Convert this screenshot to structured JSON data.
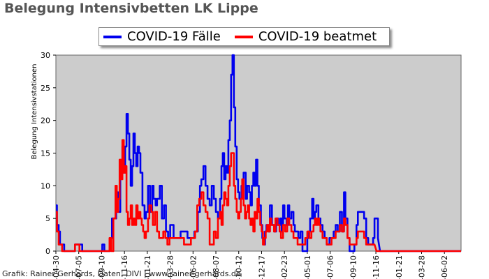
{
  "chart_data": {
    "type": "line",
    "title": "Belegung Intensivbetten LK Lippe",
    "ylabel": "Belegung Intensivstationen",
    "ylim": [
      0,
      30
    ],
    "yticks": [
      0,
      5,
      10,
      15,
      20,
      25,
      30
    ],
    "grid": false,
    "legend_position": "top-center",
    "background_color": "#cccccc",
    "x_tick_labels": [
      "-04-30",
      "-07-05",
      "-09-10",
      "-11-16",
      "-01-21",
      "-03-28",
      "-06-02",
      "-08-07",
      "-10-12",
      "-12-17",
      "-02-23",
      "-05-01",
      "-07-06",
      "-09-10",
      "-11-16",
      "-01-21",
      "-03-28",
      "-06-02"
    ],
    "x_tick_index": [
      0,
      66,
      132,
      198,
      264,
      330,
      396,
      462,
      528,
      594,
      660,
      726,
      792,
      858,
      924,
      990,
      1056,
      1122
    ],
    "x_total": 1170,
    "series": [
      {
        "name": "COVID-19 Fälle",
        "color": "#0000ee",
        "points": [
          [
            0,
            7
          ],
          [
            3,
            4
          ],
          [
            8,
            3
          ],
          [
            12,
            1
          ],
          [
            18,
            1
          ],
          [
            24,
            0
          ],
          [
            55,
            1
          ],
          [
            70,
            1
          ],
          [
            76,
            0
          ],
          [
            130,
            0
          ],
          [
            134,
            1
          ],
          [
            140,
            0
          ],
          [
            152,
            0
          ],
          [
            156,
            2
          ],
          [
            162,
            5
          ],
          [
            168,
            5
          ],
          [
            174,
            9
          ],
          [
            180,
            6
          ],
          [
            186,
            13
          ],
          [
            192,
            16
          ],
          [
            196,
            12
          ],
          [
            200,
            16
          ],
          [
            204,
            21
          ],
          [
            208,
            18
          ],
          [
            212,
            14
          ],
          [
            216,
            10
          ],
          [
            220,
            13
          ],
          [
            224,
            18
          ],
          [
            228,
            15
          ],
          [
            232,
            13
          ],
          [
            236,
            16
          ],
          [
            240,
            15
          ],
          [
            244,
            12
          ],
          [
            250,
            7
          ],
          [
            256,
            5
          ],
          [
            260,
            6
          ],
          [
            266,
            10
          ],
          [
            272,
            6
          ],
          [
            278,
            10
          ],
          [
            282,
            8
          ],
          [
            288,
            7
          ],
          [
            292,
            8
          ],
          [
            300,
            10
          ],
          [
            306,
            5
          ],
          [
            312,
            7
          ],
          [
            318,
            3
          ],
          [
            324,
            2
          ],
          [
            330,
            4
          ],
          [
            340,
            2
          ],
          [
            350,
            2
          ],
          [
            360,
            3
          ],
          [
            370,
            3
          ],
          [
            380,
            2
          ],
          [
            390,
            2
          ],
          [
            400,
            3
          ],
          [
            410,
            6
          ],
          [
            416,
            10
          ],
          [
            420,
            11
          ],
          [
            426,
            13
          ],
          [
            432,
            10
          ],
          [
            438,
            8
          ],
          [
            444,
            7
          ],
          [
            450,
            10
          ],
          [
            456,
            8
          ],
          [
            462,
            6
          ],
          [
            468,
            5
          ],
          [
            474,
            8
          ],
          [
            478,
            13
          ],
          [
            482,
            15
          ],
          [
            486,
            11
          ],
          [
            490,
            13
          ],
          [
            494,
            12
          ],
          [
            498,
            17
          ],
          [
            502,
            20
          ],
          [
            506,
            27
          ],
          [
            510,
            30
          ],
          [
            514,
            22
          ],
          [
            518,
            16
          ],
          [
            522,
            11
          ],
          [
            526,
            9
          ],
          [
            530,
            8
          ],
          [
            536,
            10
          ],
          [
            542,
            12
          ],
          [
            548,
            8
          ],
          [
            552,
            10
          ],
          [
            558,
            9
          ],
          [
            562,
            7
          ],
          [
            566,
            10
          ],
          [
            570,
            12
          ],
          [
            574,
            10
          ],
          [
            578,
            14
          ],
          [
            582,
            10
          ],
          [
            586,
            7
          ],
          [
            592,
            4
          ],
          [
            596,
            2
          ],
          [
            600,
            1
          ],
          [
            604,
            3
          ],
          [
            608,
            4
          ],
          [
            614,
            3
          ],
          [
            618,
            7
          ],
          [
            624,
            4
          ],
          [
            630,
            3
          ],
          [
            636,
            5
          ],
          [
            642,
            4
          ],
          [
            648,
            5
          ],
          [
            652,
            3
          ],
          [
            656,
            7
          ],
          [
            660,
            5
          ],
          [
            666,
            4
          ],
          [
            670,
            7
          ],
          [
            674,
            5
          ],
          [
            680,
            6
          ],
          [
            686,
            4
          ],
          [
            690,
            3
          ],
          [
            694,
            3
          ],
          [
            700,
            2
          ],
          [
            706,
            3
          ],
          [
            712,
            0
          ],
          [
            720,
            0
          ],
          [
            726,
            2
          ],
          [
            730,
            3
          ],
          [
            734,
            5
          ],
          [
            740,
            8
          ],
          [
            744,
            5
          ],
          [
            748,
            6
          ],
          [
            752,
            7
          ],
          [
            758,
            5
          ],
          [
            764,
            4
          ],
          [
            770,
            3
          ],
          [
            776,
            2
          ],
          [
            782,
            1
          ],
          [
            790,
            2
          ],
          [
            796,
            2
          ],
          [
            802,
            3
          ],
          [
            808,
            4
          ],
          [
            814,
            3
          ],
          [
            820,
            6
          ],
          [
            826,
            3
          ],
          [
            832,
            9
          ],
          [
            836,
            5
          ],
          [
            842,
            2
          ],
          [
            848,
            0
          ],
          [
            856,
            0
          ],
          [
            862,
            1
          ],
          [
            868,
            4
          ],
          [
            872,
            6
          ],
          [
            876,
            6
          ],
          [
            884,
            6
          ],
          [
            890,
            5
          ],
          [
            896,
            2
          ],
          [
            902,
            1
          ],
          [
            910,
            1
          ],
          [
            916,
            2
          ],
          [
            920,
            5
          ],
          [
            930,
            2
          ]
        ]
      },
      {
        "name": "COVID-19 beatmet",
        "color": "#ff0000",
        "points": [
          [
            0,
            6
          ],
          [
            3,
            3
          ],
          [
            8,
            1
          ],
          [
            12,
            1
          ],
          [
            18,
            0
          ],
          [
            55,
            1
          ],
          [
            62,
            1
          ],
          [
            68,
            0
          ],
          [
            150,
            0
          ],
          [
            155,
            2
          ],
          [
            160,
            0
          ],
          [
            166,
            5
          ],
          [
            172,
            10
          ],
          [
            176,
            6
          ],
          [
            180,
            8
          ],
          [
            184,
            14
          ],
          [
            188,
            11
          ],
          [
            192,
            17
          ],
          [
            196,
            12
          ],
          [
            200,
            13
          ],
          [
            204,
            6
          ],
          [
            208,
            4
          ],
          [
            212,
            5
          ],
          [
            216,
            7
          ],
          [
            220,
            4
          ],
          [
            224,
            5
          ],
          [
            228,
            4
          ],
          [
            232,
            7
          ],
          [
            236,
            5
          ],
          [
            240,
            6
          ],
          [
            244,
            5
          ],
          [
            248,
            4
          ],
          [
            252,
            3
          ],
          [
            256,
            2
          ],
          [
            260,
            3
          ],
          [
            266,
            5
          ],
          [
            270,
            7
          ],
          [
            276,
            6
          ],
          [
            280,
            4
          ],
          [
            286,
            6
          ],
          [
            292,
            3
          ],
          [
            298,
            2
          ],
          [
            304,
            2
          ],
          [
            310,
            3
          ],
          [
            316,
            2
          ],
          [
            322,
            1
          ],
          [
            328,
            2
          ],
          [
            334,
            2
          ],
          [
            340,
            2
          ],
          [
            350,
            2
          ],
          [
            360,
            2
          ],
          [
            370,
            1
          ],
          [
            380,
            1
          ],
          [
            390,
            2
          ],
          [
            396,
            2
          ],
          [
            402,
            3
          ],
          [
            408,
            7
          ],
          [
            414,
            8
          ],
          [
            420,
            9
          ],
          [
            426,
            7
          ],
          [
            432,
            6
          ],
          [
            438,
            5
          ],
          [
            444,
            1
          ],
          [
            450,
            1
          ],
          [
            456,
            3
          ],
          [
            462,
            2
          ],
          [
            468,
            5
          ],
          [
            474,
            6
          ],
          [
            478,
            4
          ],
          [
            482,
            7
          ],
          [
            486,
            9
          ],
          [
            490,
            8
          ],
          [
            494,
            7
          ],
          [
            498,
            10
          ],
          [
            502,
            13
          ],
          [
            506,
            15
          ],
          [
            510,
            15
          ],
          [
            514,
            10
          ],
          [
            518,
            8
          ],
          [
            522,
            6
          ],
          [
            526,
            5
          ],
          [
            530,
            6
          ],
          [
            534,
            8
          ],
          [
            538,
            11
          ],
          [
            542,
            7
          ],
          [
            546,
            5
          ],
          [
            550,
            6
          ],
          [
            554,
            7
          ],
          [
            558,
            5
          ],
          [
            562,
            4
          ],
          [
            566,
            5
          ],
          [
            570,
            3
          ],
          [
            574,
            6
          ],
          [
            578,
            5
          ],
          [
            582,
            8
          ],
          [
            586,
            6
          ],
          [
            590,
            4
          ],
          [
            594,
            3
          ],
          [
            598,
            1
          ],
          [
            602,
            2
          ],
          [
            606,
            3
          ],
          [
            610,
            4
          ],
          [
            614,
            3
          ],
          [
            618,
            5
          ],
          [
            622,
            4
          ],
          [
            626,
            4
          ],
          [
            630,
            3
          ],
          [
            634,
            5
          ],
          [
            640,
            4
          ],
          [
            646,
            3
          ],
          [
            650,
            2
          ],
          [
            656,
            4
          ],
          [
            662,
            3
          ],
          [
            668,
            5
          ],
          [
            674,
            4
          ],
          [
            680,
            3
          ],
          [
            686,
            2
          ],
          [
            692,
            2
          ],
          [
            698,
            1
          ],
          [
            706,
            1
          ],
          [
            712,
            1
          ],
          [
            720,
            2
          ],
          [
            726,
            3
          ],
          [
            732,
            2
          ],
          [
            738,
            3
          ],
          [
            744,
            4
          ],
          [
            748,
            5
          ],
          [
            752,
            4
          ],
          [
            756,
            5
          ],
          [
            760,
            4
          ],
          [
            764,
            3
          ],
          [
            770,
            2
          ],
          [
            776,
            2
          ],
          [
            782,
            1
          ],
          [
            790,
            1
          ],
          [
            796,
            2
          ],
          [
            802,
            2
          ],
          [
            808,
            3
          ],
          [
            814,
            3
          ],
          [
            820,
            4
          ],
          [
            826,
            3
          ],
          [
            832,
            5
          ],
          [
            836,
            4
          ],
          [
            842,
            2
          ],
          [
            848,
            1
          ],
          [
            856,
            1
          ],
          [
            862,
            1
          ],
          [
            868,
            2
          ],
          [
            872,
            3
          ],
          [
            876,
            3
          ],
          [
            884,
            3
          ],
          [
            890,
            2
          ],
          [
            896,
            1
          ],
          [
            902,
            1
          ],
          [
            910,
            1
          ],
          [
            916,
            1
          ],
          [
            920,
            1
          ]
        ]
      }
    ],
    "credit": "Grafik: Rainer Gerhards, Daten: DIVI | www.rainer-gerhards.de"
  }
}
